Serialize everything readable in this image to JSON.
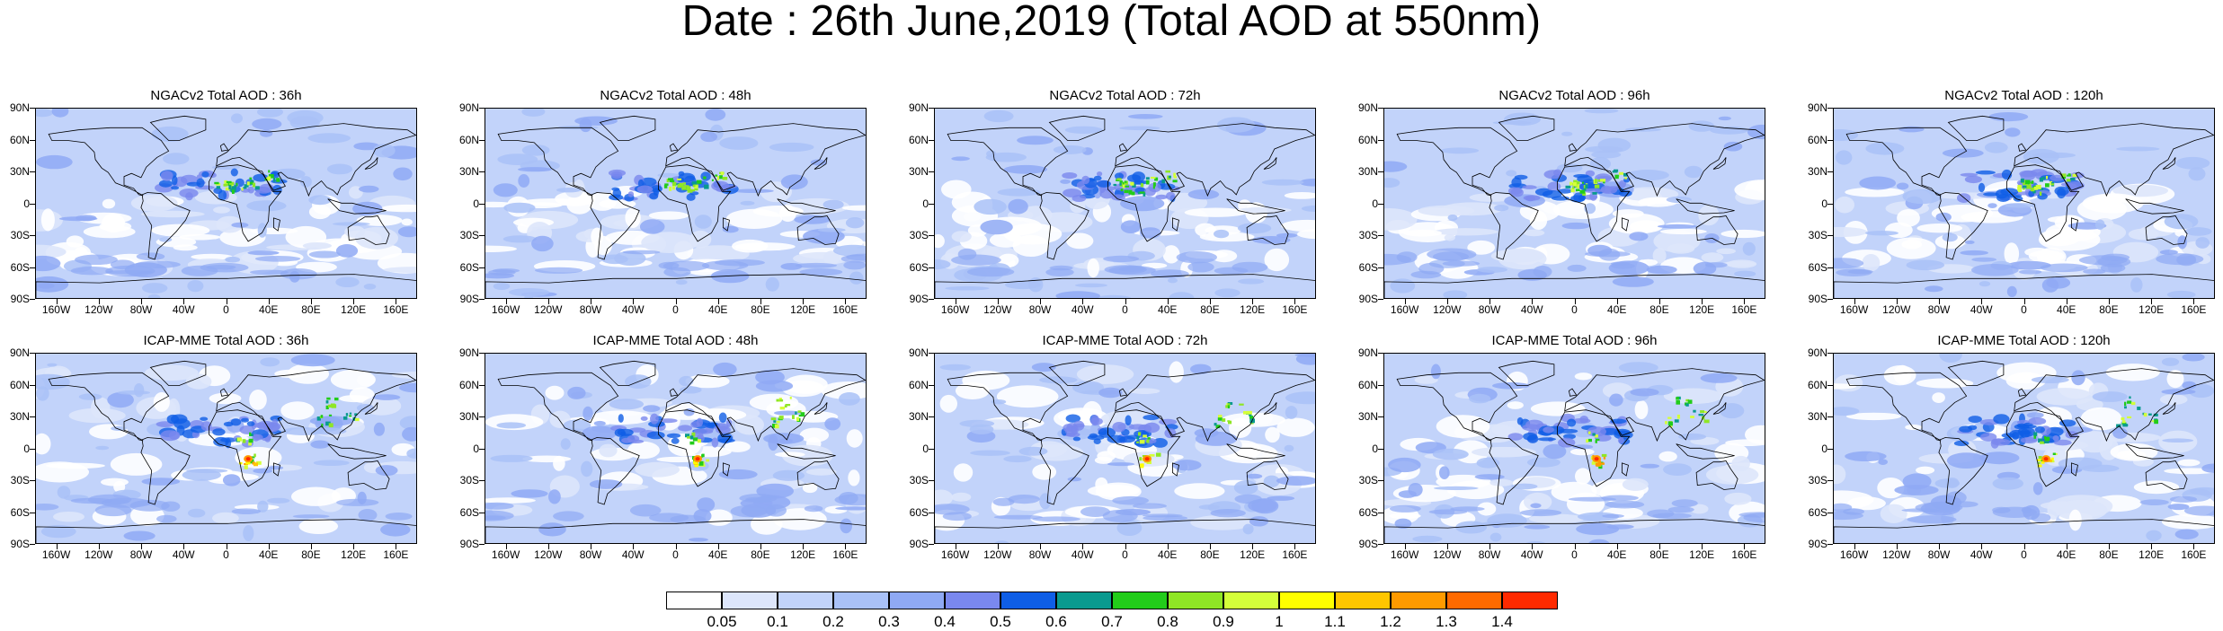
{
  "figure": {
    "title": "Date : 26th June,2019 (Total AOD at 550nm)"
  },
  "axes": {
    "lat_labels": [
      "90N",
      "60N",
      "30N",
      "0",
      "30S",
      "60S",
      "90S"
    ],
    "lon_labels": [
      "160W",
      "120W",
      "80W",
      "40W",
      "0",
      "40E",
      "80E",
      "120E",
      "160E"
    ]
  },
  "panels": [
    {
      "title": "NGACv2 Total AOD : 36h"
    },
    {
      "title": "NGACv2 Total AOD : 48h"
    },
    {
      "title": "NGACv2 Total AOD : 72h"
    },
    {
      "title": "NGACv2 Total AOD : 96h"
    },
    {
      "title": "NGACv2 Total AOD : 120h"
    },
    {
      "title": "ICAP-MME Total AOD : 36h"
    },
    {
      "title": "ICAP-MME Total AOD : 48h"
    },
    {
      "title": "ICAP-MME Total AOD : 72h"
    },
    {
      "title": "ICAP-MME Total AOD : 96h"
    },
    {
      "title": "ICAP-MME Total AOD : 120h"
    }
  ],
  "colorbar": {
    "labels": [
      "0.05",
      "0.1",
      "0.2",
      "0.3",
      "0.4",
      "0.5",
      "0.6",
      "0.7",
      "0.8",
      "0.9",
      "1",
      "1.1",
      "1.2",
      "1.3",
      "1.4"
    ],
    "colors": [
      "#ffffff",
      "#dde6fb",
      "#c2d3fa",
      "#a9c1f7",
      "#8fa9f4",
      "#7a88ee",
      "#0f5ee6",
      "#0a9a8f",
      "#22cc1a",
      "#8fe625",
      "#d4ff3a",
      "#ffff00",
      "#ffc600",
      "#ff9a00",
      "#ff6a00",
      "#ff2a00"
    ]
  }
}
